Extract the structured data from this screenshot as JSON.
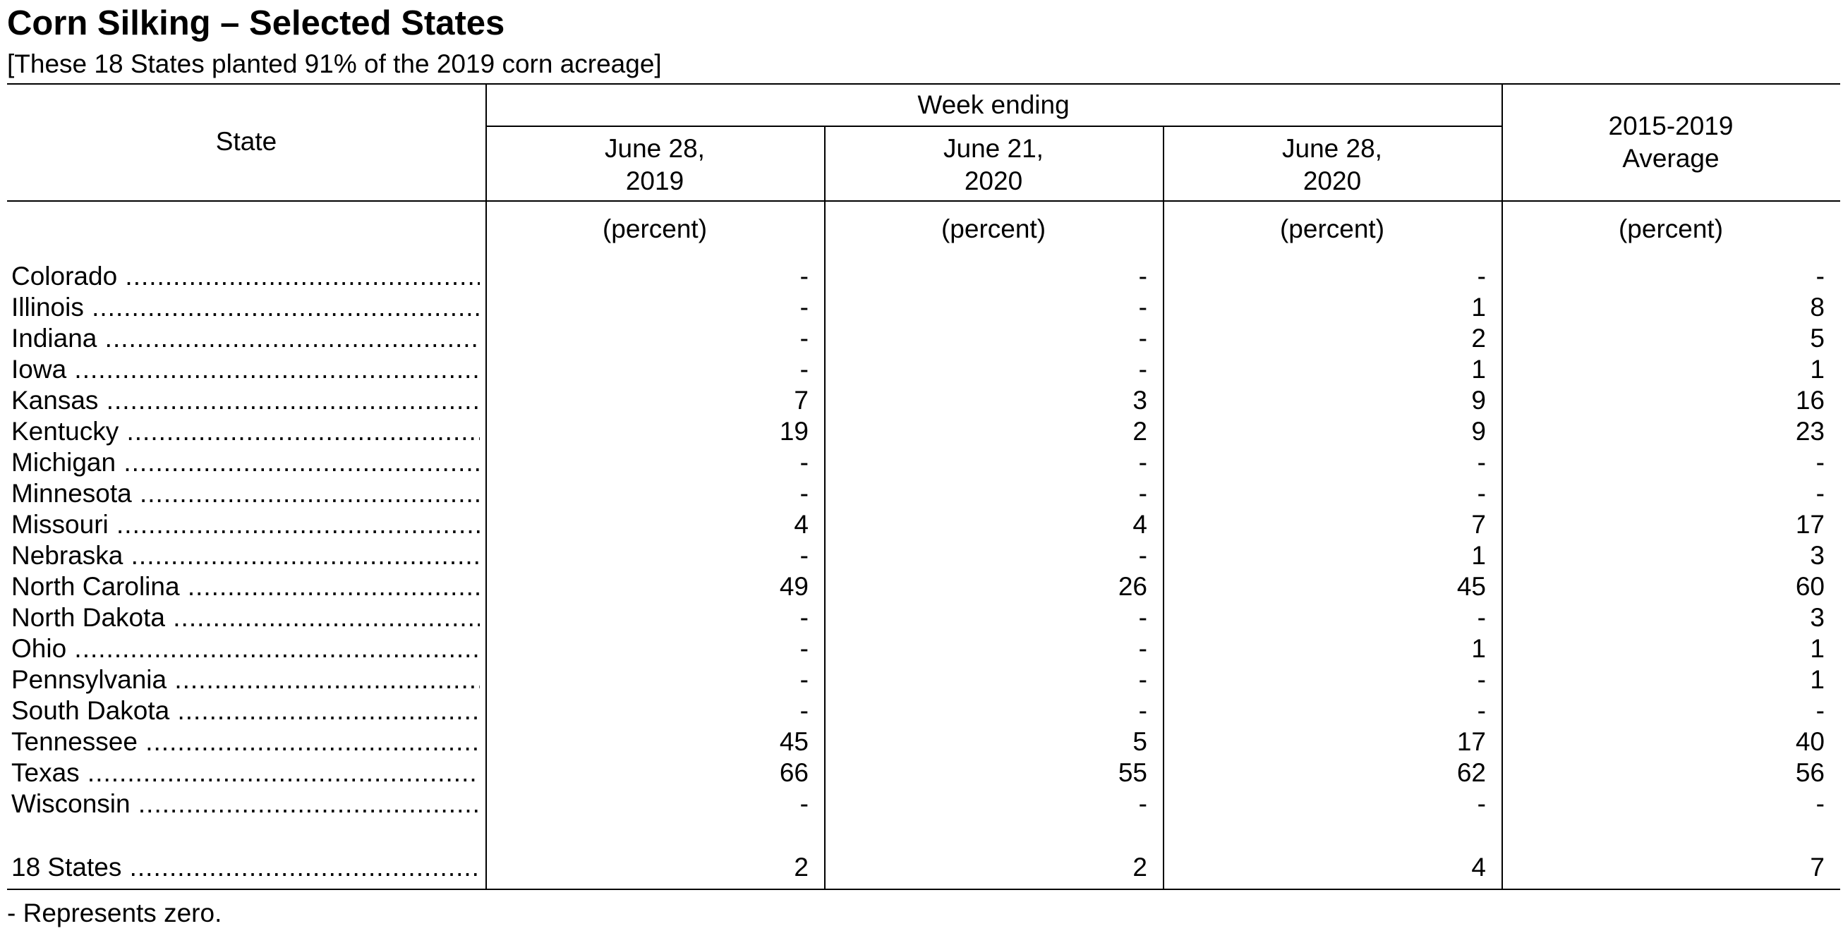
{
  "title": "Corn Silking – Selected States",
  "subtitle": "[These 18 States planted 91% of the 2019 corn acreage]",
  "table": {
    "state_header": "State",
    "group_header": "Week ending",
    "columns": [
      {
        "line1": "June 28,",
        "line2": "2019",
        "unit": "(percent)"
      },
      {
        "line1": "June 21,",
        "line2": "2020",
        "unit": "(percent)"
      },
      {
        "line1": "June 28,",
        "line2": "2020",
        "unit": "(percent)"
      },
      {
        "line1": "2015-2019",
        "line2": "Average",
        "unit": "(percent)"
      }
    ],
    "rows": [
      {
        "state": "Colorado",
        "values": [
          "-",
          "-",
          "-",
          "-"
        ]
      },
      {
        "state": "Illinois",
        "values": [
          "-",
          "-",
          "1",
          "8"
        ]
      },
      {
        "state": "Indiana",
        "values": [
          "-",
          "-",
          "2",
          "5"
        ]
      },
      {
        "state": "Iowa",
        "values": [
          "-",
          "-",
          "1",
          "1"
        ]
      },
      {
        "state": "Kansas",
        "values": [
          "7",
          "3",
          "9",
          "16"
        ]
      },
      {
        "state": "Kentucky",
        "values": [
          "19",
          "2",
          "9",
          "23"
        ]
      },
      {
        "state": "Michigan",
        "values": [
          "-",
          "-",
          "-",
          "-"
        ]
      },
      {
        "state": "Minnesota",
        "values": [
          "-",
          "-",
          "-",
          "-"
        ]
      },
      {
        "state": "Missouri",
        "values": [
          "4",
          "4",
          "7",
          "17"
        ]
      },
      {
        "state": "Nebraska",
        "values": [
          "-",
          "-",
          "1",
          "3"
        ]
      },
      {
        "state": "North Carolina",
        "values": [
          "49",
          "26",
          "45",
          "60"
        ]
      },
      {
        "state": "North Dakota",
        "values": [
          "-",
          "-",
          "-",
          "3"
        ]
      },
      {
        "state": "Ohio",
        "values": [
          "-",
          "-",
          "1",
          "1"
        ]
      },
      {
        "state": "Pennsylvania",
        "values": [
          "-",
          "-",
          "-",
          "1"
        ]
      },
      {
        "state": "South Dakota",
        "values": [
          "-",
          "-",
          "-",
          "-"
        ]
      },
      {
        "state": "Tennessee",
        "values": [
          "45",
          "5",
          "17",
          "40"
        ]
      },
      {
        "state": "Texas",
        "values": [
          "66",
          "55",
          "62",
          "56"
        ]
      },
      {
        "state": "Wisconsin",
        "values": [
          "-",
          "-",
          "-",
          "-"
        ]
      }
    ],
    "total": {
      "state": "18 States",
      "values": [
        "2",
        "2",
        "4",
        "7"
      ]
    }
  },
  "footnote": "- Represents zero."
}
